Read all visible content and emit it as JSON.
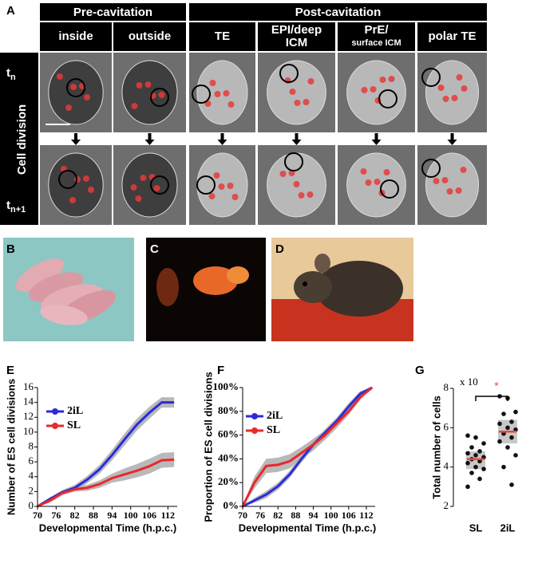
{
  "panel_a": {
    "label": "A",
    "groups": [
      "Pre-cavitation",
      "Post-cavitation"
    ],
    "columns": [
      [
        "inside"
      ],
      [
        "outside"
      ],
      [
        "TE"
      ],
      [
        "EPI/deep",
        "ICM"
      ],
      [
        "PrE/",
        "surface ICM"
      ],
      [
        "polar TE"
      ]
    ],
    "row_label": "Cell division",
    "rows": [
      {
        "base": "t",
        "sub": "n"
      },
      {
        "base": "t",
        "sub": "n+1"
      }
    ]
  },
  "photos": [
    {
      "label": "B"
    },
    {
      "label": "C"
    },
    {
      "label": "D"
    }
  ],
  "chart_data": [
    {
      "type": "line",
      "label": "E",
      "y_label": "Number of ES cell divisions",
      "x_label": "Developmental Time (h.p.c.)",
      "x": [
        70,
        74,
        78,
        82,
        86,
        90,
        94,
        98,
        102,
        106,
        110,
        114
      ],
      "series": [
        {
          "name": "2iL",
          "color": "#2b2bd9",
          "values": [
            0,
            1,
            1.9,
            2.5,
            3.6,
            5,
            6.9,
            9,
            11,
            12.6,
            14,
            14
          ],
          "error": [
            0,
            0.2,
            0.3,
            0.4,
            0.5,
            0.6,
            0.7,
            0.8,
            0.8,
            0.8,
            0.7,
            0.7
          ]
        },
        {
          "name": "SL",
          "color": "#e8282c",
          "values": [
            0,
            0.8,
            1.8,
            2.3,
            2.5,
            3,
            3.8,
            4.3,
            4.8,
            5.4,
            6.2,
            6.3
          ],
          "error": [
            0,
            0.3,
            0.3,
            0.3,
            0.4,
            0.5,
            0.6,
            0.8,
            0.9,
            1,
            1,
            1
          ]
        }
      ],
      "band_color": "#a8a8a8",
      "xlim": [
        70,
        115
      ],
      "xticks": [
        70,
        76,
        82,
        88,
        94,
        100,
        106,
        112
      ],
      "ylim": [
        0,
        16
      ],
      "yticks": [
        0,
        2,
        4,
        6,
        8,
        10,
        12,
        14,
        16
      ]
    },
    {
      "type": "line",
      "label": "F",
      "y_label": "Proportion of ES cell divisions",
      "x_label": "Developmental Time (h.p.c.)",
      "x": [
        70,
        74,
        78,
        82,
        86,
        90,
        94,
        98,
        102,
        106,
        110,
        114
      ],
      "series": [
        {
          "name": "2iL",
          "color": "#2b2bd9",
          "values": [
            0,
            5,
            10,
            17,
            27,
            40,
            52,
            62,
            72,
            84,
            95,
            100
          ],
          "error": [
            0,
            2,
            3,
            3,
            3,
            3,
            3,
            3,
            3,
            3,
            2,
            0
          ]
        },
        {
          "name": "SL",
          "color": "#e8282c",
          "values": [
            0,
            20,
            34,
            35,
            38,
            45,
            52,
            60,
            70,
            80,
            92,
            100
          ],
          "error": [
            0,
            5,
            6,
            6,
            6,
            5,
            5,
            4,
            4,
            3,
            2,
            0
          ]
        }
      ],
      "band_color": "#a8a8a8",
      "xlim": [
        70,
        115
      ],
      "xticks": [
        70,
        76,
        82,
        88,
        94,
        100,
        106,
        112
      ],
      "ylim": [
        0,
        100
      ],
      "yticks": [
        {
          "value": 0,
          "label": "0%"
        },
        {
          "value": 20,
          "label": "20%"
        },
        {
          "value": 40,
          "label": "40%"
        },
        {
          "value": 60,
          "label": "60%"
        },
        {
          "value": 80,
          "label": "80%"
        },
        {
          "value": 100,
          "label": "100%"
        }
      ]
    },
    {
      "type": "strip",
      "label": "G",
      "y_label": "Total number of cells",
      "annotation": "x 10",
      "significance": "*",
      "categories": [
        "SL",
        "2iL"
      ],
      "groups": [
        {
          "values": [
            5.6,
            5.5,
            5.2,
            5.0,
            4.8,
            4.7,
            4.6,
            4.5,
            4.4,
            4.3,
            4.2,
            4.0,
            3.9,
            3.7,
            3.4,
            3.0
          ],
          "mean": 4.4,
          "box": [
            3.9,
            4.8
          ]
        },
        {
          "values": [
            7.6,
            7.5,
            6.8,
            6.7,
            6.3,
            6.2,
            6.0,
            5.9,
            5.7,
            5.5,
            5.3,
            5.0,
            4.6,
            4.0,
            3.1
          ],
          "mean": 5.8,
          "box": [
            5.2,
            6.4
          ]
        }
      ],
      "point_color": "#111111",
      "mean_color": "#e8483c",
      "box_color": "#c8c8c8",
      "ylim": [
        2,
        8
      ],
      "yticks": [
        2,
        4,
        6,
        8
      ]
    }
  ]
}
